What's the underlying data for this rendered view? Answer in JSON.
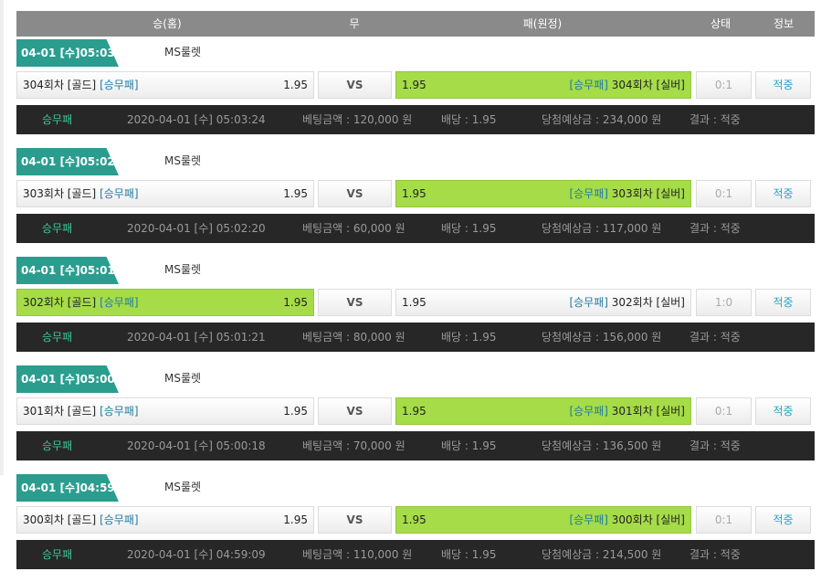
{
  "header": {
    "win": "승(홈)",
    "draw": "무",
    "lose": "패(원정)",
    "status": "상태",
    "info": "정보"
  },
  "games": [
    {
      "tag": "04-01 [수]05:03",
      "title": "MS룰렛",
      "home": "304회차 [골드]",
      "home_type": "[승무패]",
      "home_odds": "1.95",
      "vs": "VS",
      "away_odds": "1.95",
      "away_type": "[승무패]",
      "away": "304회차 [실버]",
      "score": "0:1",
      "info": "적중",
      "highlight": "away",
      "bet": {
        "pick": "승무패",
        "time": "2020-04-01 [수] 05:03:24",
        "amount": "베팅금액 : 120,000 원",
        "odds": "배당 : 1.95",
        "expected": "당첨예상금 : 234,000 원",
        "result": "결과 : 적중"
      }
    },
    {
      "tag": "04-01 [수]05:02",
      "title": "MS룰렛",
      "home": "303회차 [골드]",
      "home_type": "[승무패]",
      "home_odds": "1.95",
      "vs": "VS",
      "away_odds": "1.95",
      "away_type": "[승무패]",
      "away": "303회차 [실버]",
      "score": "0:1",
      "info": "적중",
      "highlight": "away",
      "bet": {
        "pick": "승무패",
        "time": "2020-04-01 [수] 05:02:20",
        "amount": "베팅금액 : 60,000 원",
        "odds": "배당 : 1.95",
        "expected": "당첨예상금 : 117,000 원",
        "result": "결과 : 적중"
      }
    },
    {
      "tag": "04-01 [수]05:01",
      "title": "MS룰렛",
      "home": "302회차 [골드]",
      "home_type": "[승무패]",
      "home_odds": "1.95",
      "vs": "VS",
      "away_odds": "1.95",
      "away_type": "[승무패]",
      "away": "302회차 [실버]",
      "score": "1:0",
      "info": "적중",
      "highlight": "home",
      "bet": {
        "pick": "승무패",
        "time": "2020-04-01 [수] 05:01:21",
        "amount": "베팅금액 : 80,000 원",
        "odds": "배당 : 1.95",
        "expected": "당첨예상금 : 156,000 원",
        "result": "결과 : 적중"
      }
    },
    {
      "tag": "04-01 [수]05:00",
      "title": "MS룰렛",
      "home": "301회차 [골드]",
      "home_type": "[승무패]",
      "home_odds": "1.95",
      "vs": "VS",
      "away_odds": "1.95",
      "away_type": "[승무패]",
      "away": "301회차 [실버]",
      "score": "0:1",
      "info": "적중",
      "highlight": "away",
      "bet": {
        "pick": "승무패",
        "time": "2020-04-01 [수] 05:00:18",
        "amount": "베팅금액 : 70,000 원",
        "odds": "배당 : 1.95",
        "expected": "당첨예상금 : 136,500 원",
        "result": "결과 : 적중"
      }
    },
    {
      "tag": "04-01 [수]04:59",
      "title": "MS룰렛",
      "home": "300회차 [골드]",
      "home_type": "[승무패]",
      "home_odds": "1.95",
      "vs": "VS",
      "away_odds": "1.95",
      "away_type": "[승무패]",
      "away": "300회차 [실버]",
      "score": "0:1",
      "info": "적중",
      "highlight": "away",
      "bet": {
        "pick": "승무패",
        "time": "2020-04-01 [수] 04:59:09",
        "amount": "베팅금액 : 110,000 원",
        "odds": "배당 : 1.95",
        "expected": "당첨예상금 : 214,500 원",
        "result": "결과 : 적중"
      }
    }
  ]
}
